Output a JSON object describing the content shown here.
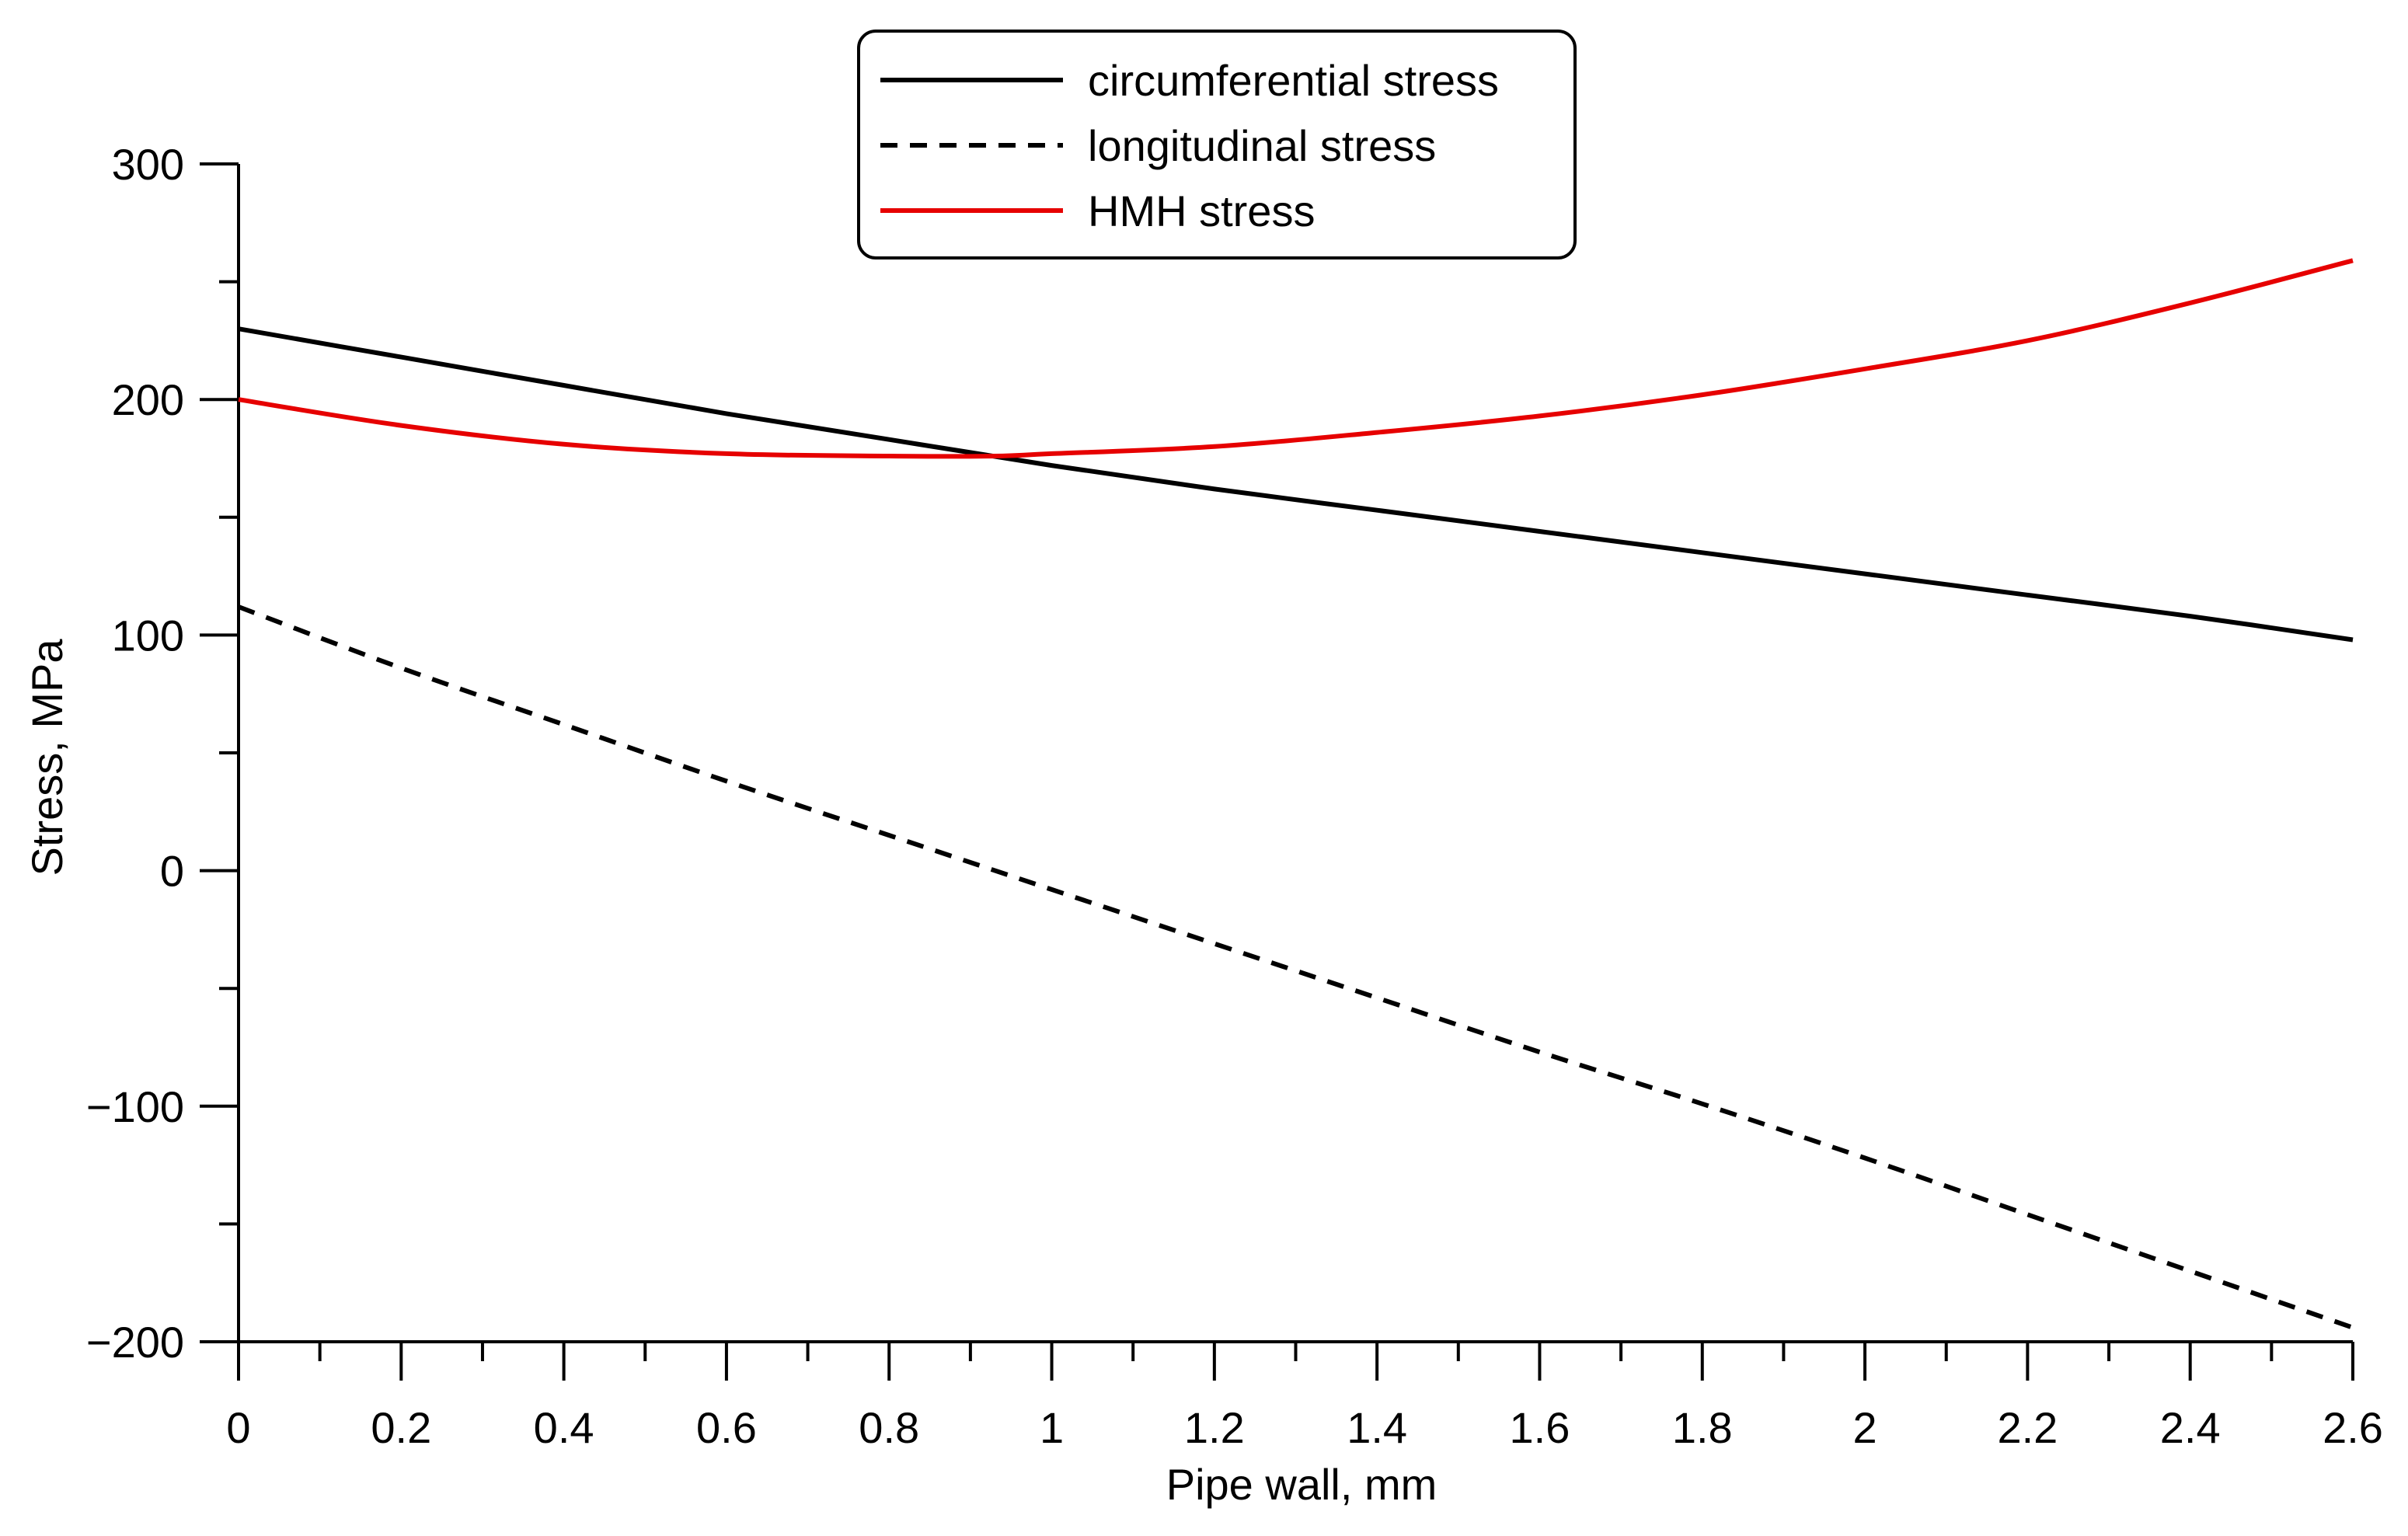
{
  "chart_data": {
    "type": "line",
    "title": "",
    "xlabel": "Pipe wall, mm",
    "ylabel": "Stress, MPa",
    "xlim": [
      0,
      2.6
    ],
    "ylim": [
      -200,
      300
    ],
    "x_major_ticks": [
      0,
      0.2,
      0.4,
      0.6,
      0.8,
      1,
      1.2,
      1.4,
      1.6,
      1.8,
      2,
      2.2,
      2.4,
      2.6
    ],
    "x_tick_labels": [
      "0",
      "0.2",
      "0.4",
      "0.6",
      "0.8",
      "1",
      "1.2",
      "1.4",
      "1.6",
      "1.8",
      "2",
      "2.2",
      "2.4",
      "2.6"
    ],
    "x_minor_ticks": [
      0.1,
      0.3,
      0.5,
      0.7,
      0.9,
      1.1,
      1.3,
      1.5,
      1.7,
      1.9,
      2.1,
      2.3,
      2.5
    ],
    "y_major_ticks": [
      -200,
      -100,
      0,
      100,
      200,
      300
    ],
    "y_tick_labels": [
      "−200",
      "−100",
      "0",
      "100",
      "200",
      "300"
    ],
    "y_minor_ticks": [
      -150,
      -50,
      50,
      150,
      250
    ],
    "legend_position": "top-center",
    "grid": false,
    "series": [
      {
        "name": "circumferential stress",
        "color": "#000000",
        "dash": "solid",
        "x": [
          0,
          0.2,
          0.4,
          0.6,
          0.8,
          1.0,
          1.2,
          1.4,
          1.6,
          1.8,
          2.0,
          2.2,
          2.4,
          2.6
        ],
        "y": [
          230,
          218,
          206,
          194,
          183,
          172,
          162,
          153,
          144,
          135,
          126,
          117,
          108,
          98
        ]
      },
      {
        "name": "longitudinal stress",
        "color": "#000000",
        "dash": "dashed",
        "x": [
          0,
          0.2,
          0.4,
          0.6,
          0.8,
          1.0,
          1.2,
          1.4,
          1.6,
          1.8,
          2.0,
          2.2,
          2.4,
          2.6
        ],
        "y": [
          112,
          86,
          62,
          38,
          15,
          -8,
          -31,
          -54,
          -77,
          -99,
          -122,
          -146,
          -170,
          -194
        ]
      },
      {
        "name": "HMH stress",
        "color": "#e60000",
        "dash": "solid",
        "x": [
          0,
          0.2,
          0.4,
          0.6,
          0.8,
          0.93,
          1.0,
          1.2,
          1.4,
          1.6,
          1.8,
          2.0,
          2.2,
          2.4,
          2.6
        ],
        "y": [
          200,
          189,
          181,
          177,
          176,
          176,
          177,
          180,
          186,
          193,
          202,
          213,
          225,
          241,
          259
        ]
      }
    ]
  }
}
